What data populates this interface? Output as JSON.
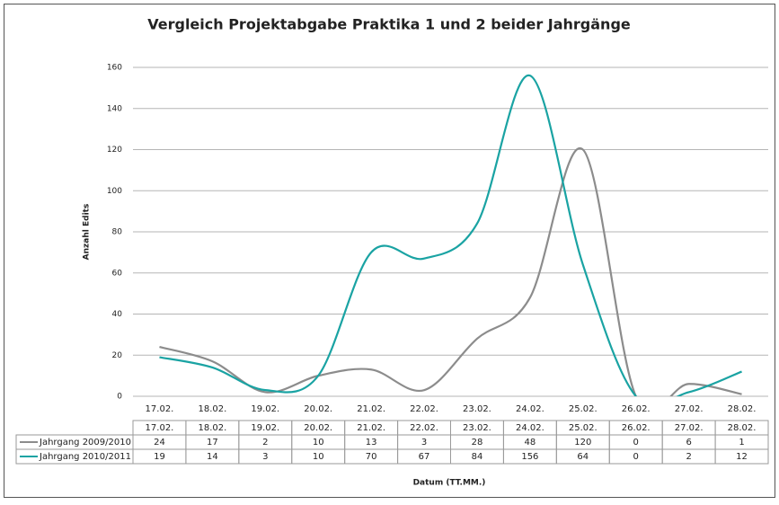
{
  "chart_data": {
    "type": "line",
    "title": "Vergleich Projektabgabe Praktika 1 und 2 beider Jahrgänge",
    "y_label": "Anzahl Edits",
    "x_label": "Datum (TT.MM.)",
    "categories": [
      "17.02.",
      "18.02.",
      "19.02.",
      "20.02.",
      "21.02.",
      "22.02.",
      "23.02.",
      "24.02.",
      "25.02.",
      "26.02.",
      "27.02.",
      "28.02."
    ],
    "series": [
      {
        "name": "Jahrgang 2009/2010",
        "color": "#8c8c8c",
        "values": [
          24,
          17,
          2,
          10,
          13,
          3,
          28,
          48,
          120,
          0,
          6,
          1
        ]
      },
      {
        "name": "Jahrgang 2010/2011",
        "color": "#1aa3a3",
        "values": [
          19,
          14,
          3,
          10,
          70,
          67,
          84,
          156,
          64,
          0,
          2,
          12
        ]
      }
    ],
    "ylim": [
      0,
      160
    ],
    "yticks": [
      0,
      20,
      40,
      60,
      80,
      100,
      120,
      140,
      160
    ],
    "grid": true
  }
}
